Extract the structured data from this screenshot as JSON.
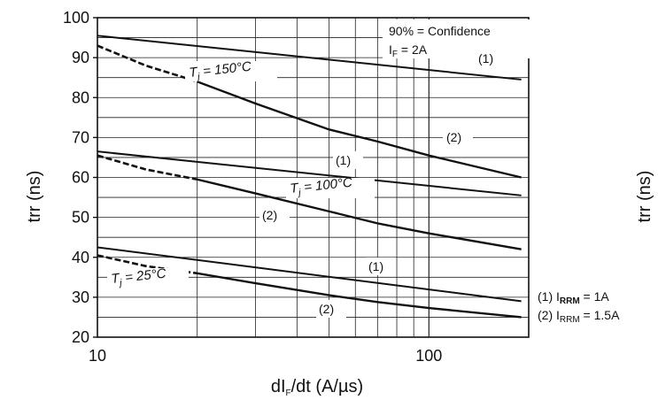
{
  "chart_data": {
    "type": "line",
    "xlabel_main": "dI",
    "xlabel_sub": "F",
    "xlabel_rest": "/dt (A/µs)",
    "ylabel": "trr (ns)",
    "ylabel_right": "trr (ns)",
    "x_scale": "log",
    "xlim": [
      10,
      200
    ],
    "ylim": [
      20,
      100
    ],
    "x_ticks": [
      "10",
      "100"
    ],
    "y_ticks": [
      "20",
      "30",
      "40",
      "50",
      "60",
      "70",
      "80",
      "90",
      "100"
    ],
    "grid": true,
    "annotation_confidence": "90% = Confidence",
    "annotation_if_main": "I",
    "annotation_if_sub": "F",
    "annotation_if_rest": " = 2A",
    "tj_labels": [
      {
        "main": "T",
        "sub": "j",
        "rest": " = 150°C"
      },
      {
        "main": "T",
        "sub": "j",
        "rest": " = 100°C"
      },
      {
        "main": "T",
        "sub": "j",
        "rest": " = 25°C"
      }
    ],
    "curve_labels": [
      "(1)",
      "(2)",
      "(1)",
      "(2)",
      "(1)",
      "(2)"
    ],
    "legend": [
      {
        "prefix": "(1) I",
        "sub": "RRM",
        "rest": " = 1A"
      },
      {
        "prefix": "(2) I",
        "sub": "RRM",
        "rest": " = 1.5A"
      }
    ],
    "series": [
      {
        "name": "(1)",
        "temperature": "150°C",
        "x": [
          10,
          190
        ],
        "y": [
          95.5,
          84.5
        ],
        "dashed_until": null
      },
      {
        "name": "(2)",
        "temperature": "150°C",
        "x": [
          10,
          14,
          20,
          30,
          50,
          70,
          100,
          190
        ],
        "y": [
          93,
          88,
          84,
          78.5,
          72,
          69,
          65.5,
          60
        ],
        "dashed_until": 20
      },
      {
        "name": "(1)",
        "temperature": "100°C",
        "x": [
          10,
          190
        ],
        "y": [
          66.5,
          55.5
        ],
        "dashed_until": null
      },
      {
        "name": "(2)",
        "temperature": "100°C",
        "x": [
          10,
          14,
          20,
          30,
          50,
          70,
          100,
          190
        ],
        "y": [
          65.5,
          62,
          59.5,
          56,
          51.5,
          48.5,
          46,
          42
        ],
        "dashed_until": 20
      },
      {
        "name": "(1)",
        "temperature": "25°C",
        "x": [
          10,
          190
        ],
        "y": [
          42.5,
          29
        ],
        "dashed_until": null
      },
      {
        "name": "(2)",
        "temperature": "25°C",
        "x": [
          10,
          14,
          20,
          30,
          50,
          70,
          100,
          190
        ],
        "y": [
          40.5,
          37.8,
          36,
          33.5,
          30.5,
          28.8,
          27.3,
          25
        ],
        "dashed_until": 20
      }
    ]
  }
}
